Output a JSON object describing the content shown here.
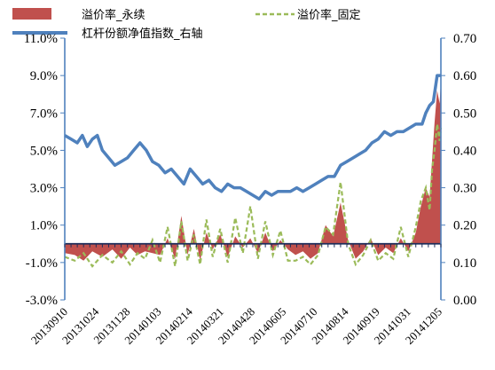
{
  "chart_data": {
    "type": "line",
    "legend": {
      "position": "top",
      "entries": [
        {
          "name": "溢价率_永续",
          "kind": "area",
          "color": "#C0504D"
        },
        {
          "name": "溢价率_固定",
          "kind": "dashed-line",
          "color": "#9BBB59"
        },
        {
          "name": "杠杆份额净值指数_右轴",
          "kind": "line",
          "color": "#4F81BD"
        }
      ]
    },
    "y_left": {
      "ticks": [
        "-3.0%",
        "-1.0%",
        "1.0%",
        "3.0%",
        "5.0%",
        "7.0%",
        "9.0%",
        "11.0%"
      ],
      "min": -3,
      "max": 11,
      "unit": "%"
    },
    "y_right": {
      "ticks": [
        "0.00",
        "0.10",
        "0.20",
        "0.30",
        "0.40",
        "0.50",
        "0.60",
        "0.70"
      ],
      "min": 0,
      "max": 0.7
    },
    "x_ticks": [
      "20130910",
      "20131024",
      "20131128",
      "20140103",
      "20140214",
      "20140321",
      "20140428",
      "20140605",
      "20140710",
      "20140814",
      "20140919",
      "20141031",
      "20141205"
    ],
    "x_range": [
      0,
      300
    ],
    "gridlines": false,
    "series": [
      {
        "name": "溢价率_永续",
        "axis": "left",
        "type": "area",
        "color": "#C0504D",
        "x": [
          0,
          8,
          15,
          22,
          30,
          38,
          45,
          52,
          58,
          64,
          70,
          76,
          82,
          88,
          93,
          98,
          103,
          108,
          113,
          118,
          124,
          130,
          136,
          142,
          148,
          154,
          160,
          166,
          172,
          178,
          184,
          190,
          196,
          202,
          208,
          214,
          220,
          226,
          232,
          238,
          244,
          250,
          256,
          262,
          268,
          274,
          280,
          284,
          288,
          291,
          293,
          295,
          297,
          299,
          300
        ],
        "y": [
          -0.5,
          -0.6,
          -0.9,
          -0.4,
          -0.7,
          -0.3,
          -0.8,
          -0.2,
          -0.6,
          -0.4,
          -0.5,
          -0.6,
          0.3,
          -0.8,
          1.5,
          -0.6,
          0.8,
          -0.9,
          0.6,
          -0.3,
          0.5,
          -0.7,
          0.4,
          -0.2,
          0.3,
          -0.5,
          0.6,
          -0.4,
          0.2,
          -0.3,
          -0.6,
          -0.4,
          -0.8,
          -0.5,
          1.0,
          0.4,
          2.2,
          0.2,
          -0.8,
          -0.4,
          0.3,
          -0.6,
          -0.2,
          -0.5,
          0.3,
          -0.4,
          0.6,
          2.0,
          3.0,
          2.5,
          4.5,
          6.5,
          8.2,
          7.5,
          8.8
        ]
      },
      {
        "name": "溢价率_固定",
        "axis": "left",
        "type": "line",
        "dashed": true,
        "color": "#9BBB59",
        "x": [
          0,
          8,
          15,
          22,
          30,
          38,
          45,
          52,
          58,
          64,
          70,
          76,
          82,
          88,
          93,
          98,
          103,
          108,
          113,
          118,
          124,
          130,
          136,
          142,
          148,
          154,
          160,
          166,
          172,
          178,
          184,
          190,
          196,
          202,
          208,
          214,
          220,
          226,
          232,
          238,
          244,
          250,
          256,
          262,
          268,
          274,
          280,
          284,
          288,
          291,
          293,
          295,
          297,
          299,
          300
        ],
        "y": [
          -0.7,
          -0.9,
          -0.5,
          -1.2,
          -0.6,
          -1.0,
          -0.4,
          -1.1,
          -0.5,
          -0.8,
          0.2,
          -1.0,
          0.9,
          -1.2,
          1.2,
          -0.9,
          0.5,
          -1.1,
          1.3,
          -0.7,
          0.8,
          -1.0,
          1.4,
          -0.5,
          2.0,
          -0.8,
          1.2,
          -0.6,
          0.7,
          -0.9,
          -0.9,
          -0.7,
          -1.1,
          -0.6,
          0.9,
          0.5,
          3.3,
          0.0,
          -1.1,
          -0.6,
          0.2,
          -0.9,
          -0.5,
          -0.8,
          0.9,
          -0.7,
          0.9,
          2.3,
          3.0,
          1.8,
          4.0,
          5.0,
          6.4,
          5.5,
          6.2
        ]
      },
      {
        "name": "杠杆份额净值指数_右轴",
        "axis": "right",
        "type": "line",
        "color": "#4F81BD",
        "x": [
          0,
          5,
          10,
          14,
          18,
          22,
          26,
          30,
          35,
          40,
          45,
          50,
          55,
          60,
          65,
          70,
          75,
          80,
          85,
          90,
          95,
          100,
          105,
          110,
          115,
          120,
          125,
          130,
          135,
          140,
          145,
          150,
          155,
          160,
          165,
          170,
          175,
          180,
          185,
          190,
          195,
          200,
          205,
          210,
          215,
          220,
          225,
          230,
          235,
          240,
          245,
          250,
          255,
          260,
          265,
          270,
          275,
          280,
          285,
          288,
          291,
          294,
          297,
          300
        ],
        "y": [
          0.44,
          0.43,
          0.42,
          0.44,
          0.41,
          0.43,
          0.44,
          0.4,
          0.38,
          0.36,
          0.37,
          0.38,
          0.4,
          0.42,
          0.4,
          0.37,
          0.36,
          0.34,
          0.35,
          0.33,
          0.31,
          0.35,
          0.33,
          0.31,
          0.32,
          0.3,
          0.29,
          0.31,
          0.3,
          0.3,
          0.29,
          0.28,
          0.27,
          0.29,
          0.28,
          0.29,
          0.29,
          0.29,
          0.3,
          0.29,
          0.3,
          0.31,
          0.32,
          0.33,
          0.33,
          0.36,
          0.37,
          0.38,
          0.39,
          0.4,
          0.42,
          0.43,
          0.45,
          0.44,
          0.45,
          0.45,
          0.46,
          0.47,
          0.47,
          0.5,
          0.52,
          0.53,
          0.6,
          0.6
        ]
      }
    ]
  }
}
